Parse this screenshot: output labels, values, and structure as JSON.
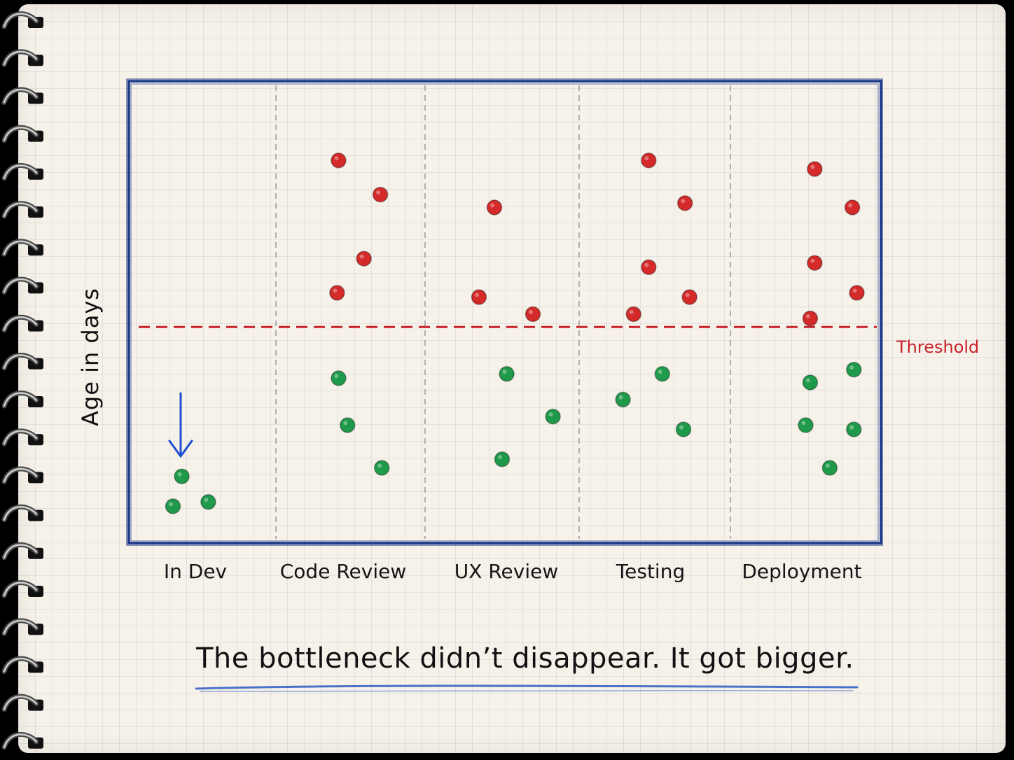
{
  "colors": {
    "paper": "#f6f2ea",
    "frame": "#1d3a8a",
    "threshold": "#c8232b",
    "over_threshold_dot": "#d42a2a",
    "under_threshold_dot": "#1f9a4a",
    "arrow": "#1f4fd0",
    "underline": "#4a72c8"
  },
  "icons": {
    "binding": "spiral-binding-icon",
    "arrow": "down-arrow-icon"
  },
  "chart_data": {
    "type": "scatter",
    "title": "",
    "xlabel": "",
    "ylabel": "Age in days",
    "categories": [
      "In Dev",
      "Code Review",
      "UX Review",
      "Testing",
      "Deployment"
    ],
    "threshold": {
      "label": "Threshold",
      "y": 48
    },
    "ylim": [
      0,
      100
    ],
    "grid": false,
    "legend": "none",
    "series": [
      {
        "status": "over-threshold",
        "points": [
          {
            "category": "Code Review",
            "offset": -0.08,
            "y": 87
          },
          {
            "category": "Code Review",
            "offset": 0.2,
            "y": 79
          },
          {
            "category": "Code Review",
            "offset": 0.09,
            "y": 64
          },
          {
            "category": "Code Review",
            "offset": -0.09,
            "y": 56
          },
          {
            "category": "UX Review",
            "offset": -0.05,
            "y": 76
          },
          {
            "category": "UX Review",
            "offset": -0.15,
            "y": 55
          },
          {
            "category": "UX Review",
            "offset": 0.2,
            "y": 51
          },
          {
            "category": "Testing",
            "offset": -0.04,
            "y": 87
          },
          {
            "category": "Testing",
            "offset": 0.2,
            "y": 77
          },
          {
            "category": "Testing",
            "offset": -0.04,
            "y": 62
          },
          {
            "category": "Testing",
            "offset": 0.23,
            "y": 55
          },
          {
            "category": "Testing",
            "offset": -0.14,
            "y": 51
          },
          {
            "category": "Deployment",
            "offset": 0.06,
            "y": 85
          },
          {
            "category": "Deployment",
            "offset": 0.31,
            "y": 76
          },
          {
            "category": "Deployment",
            "offset": 0.06,
            "y": 63
          },
          {
            "category": "Deployment",
            "offset": 0.34,
            "y": 56
          },
          {
            "category": "Deployment",
            "offset": 0.03,
            "y": 50
          }
        ]
      },
      {
        "status": "under-threshold",
        "points": [
          {
            "category": "In Dev",
            "offset": -0.14,
            "y": 13
          },
          {
            "category": "In Dev",
            "offset": -0.2,
            "y": 6
          },
          {
            "category": "In Dev",
            "offset": 0.04,
            "y": 7
          },
          {
            "category": "Code Review",
            "offset": -0.08,
            "y": 36
          },
          {
            "category": "Code Review",
            "offset": -0.02,
            "y": 25
          },
          {
            "category": "Code Review",
            "offset": 0.21,
            "y": 15
          },
          {
            "category": "UX Review",
            "offset": 0.03,
            "y": 37
          },
          {
            "category": "UX Review",
            "offset": 0.33,
            "y": 27
          },
          {
            "category": "UX Review",
            "offset": 0.0,
            "y": 17
          },
          {
            "category": "Testing",
            "offset": 0.05,
            "y": 37
          },
          {
            "category": "Testing",
            "offset": -0.21,
            "y": 31
          },
          {
            "category": "Testing",
            "offset": 0.19,
            "y": 24
          },
          {
            "category": "Deployment",
            "offset": 0.03,
            "y": 35
          },
          {
            "category": "Deployment",
            "offset": 0.32,
            "y": 38
          },
          {
            "category": "Deployment",
            "offset": 0.0,
            "y": 25
          },
          {
            "category": "Deployment",
            "offset": 0.32,
            "y": 24
          },
          {
            "category": "Deployment",
            "offset": 0.16,
            "y": 15
          }
        ]
      }
    ]
  },
  "caption": "The  bottleneck  didn’t  disappear.  It  got  bigger."
}
